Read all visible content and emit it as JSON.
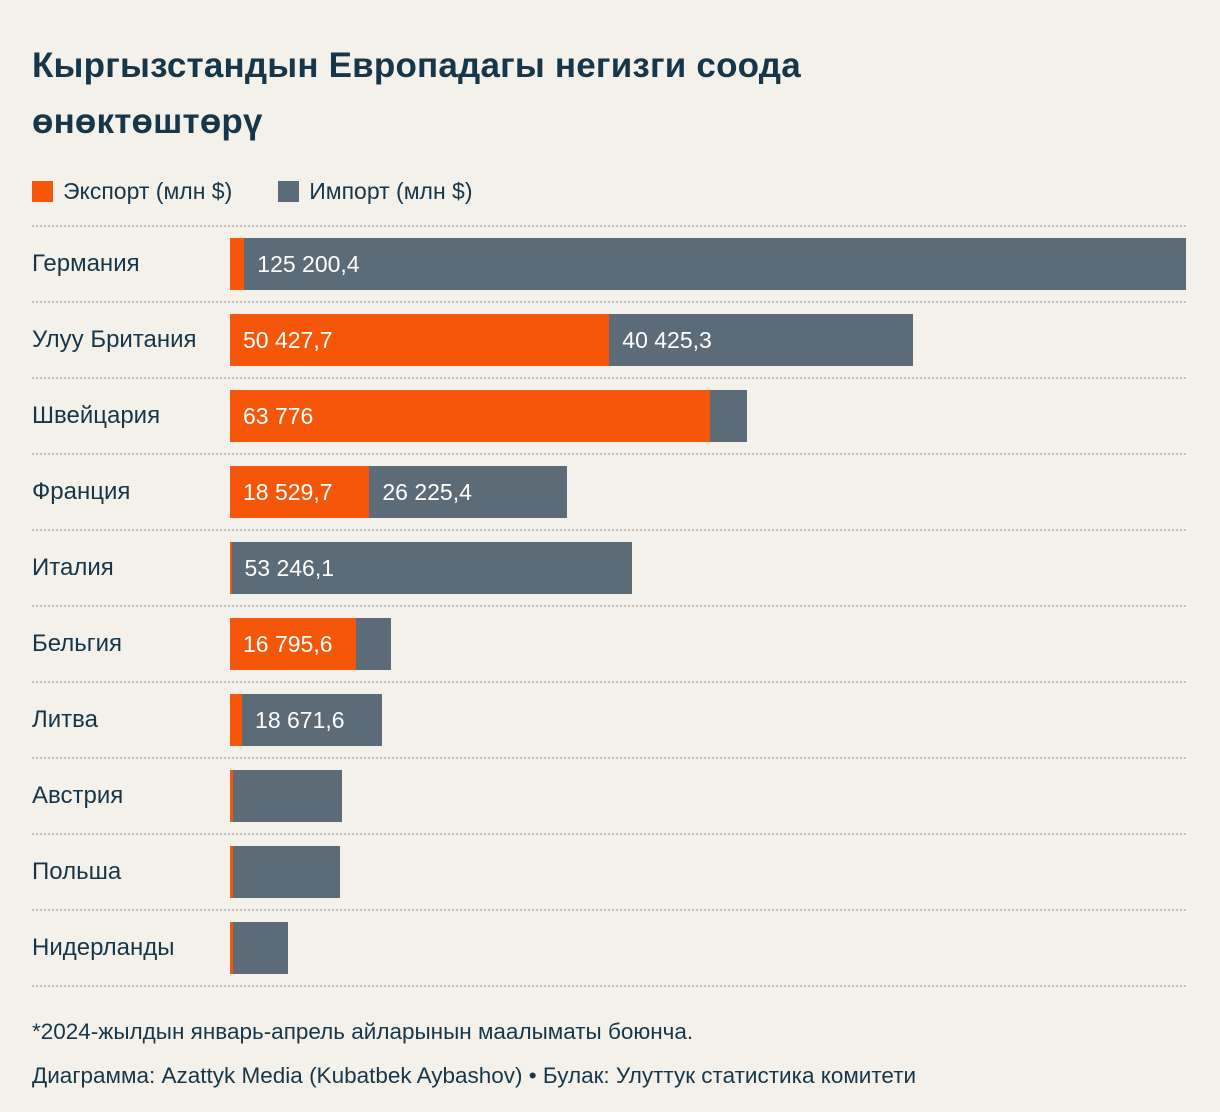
{
  "title": "Кыргызстандын Европадагы негизги соода\nөнөктөштөрү",
  "legend": {
    "export_label": "Экспорт (млн $)",
    "import_label": "Импорт (млн $)"
  },
  "colors": {
    "background": "#f4f1eb",
    "text": "#16374a",
    "export": "#f4570a",
    "import": "#5b6b77",
    "bar_label": "#ffffff",
    "separator": "#c2c0b9"
  },
  "chart_data": {
    "type": "bar",
    "orientation": "horizontal",
    "stacked": true,
    "value_unit": "млн $",
    "legend_position": "top",
    "categories": [
      "Германия",
      "Улуу Британия",
      "Швейцария",
      "Франция",
      "Италия",
      "Бельгия",
      "Литва",
      "Австрия",
      "Польша",
      "Нидерланды"
    ],
    "series": [
      {
        "name": "Экспорт",
        "color": "#f4570a",
        "values": [
          1900,
          50427.7,
          63776,
          18529.7,
          200,
          16795.6,
          1600,
          350,
          350,
          350
        ],
        "labels": [
          "",
          "50 427,7",
          "63 776",
          "18 529,7",
          "",
          "16 795,6",
          "",
          "",
          "",
          ""
        ]
      },
      {
        "name": "Импорт",
        "color": "#5b6b77",
        "values": [
          125200.4,
          40425.3,
          5000,
          26225.4,
          53246.1,
          4650,
          18671.6,
          14600,
          14300,
          7400
        ],
        "labels": [
          "125 200,4",
          "40 425,3",
          "",
          "26 225,4",
          "53 246,1",
          "",
          "18 671,6",
          "",
          "",
          ""
        ]
      }
    ],
    "scale_max": 127100.4
  },
  "footer": {
    "note": "*2024-жылдын январь-апрель айларынын маалыматы боюнча.",
    "credit": "Диаграмма: Azattyk Media (Kubatbek Aybashov) • Булак: Улуттук статистика комитети"
  }
}
